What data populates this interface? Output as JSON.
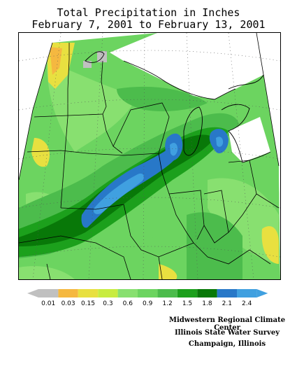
{
  "title": {
    "line1": "Total Precipitation in Inches",
    "line2": "February 7, 2001 to February 13, 2001"
  },
  "legend": {
    "colors": [
      "#c0c0c0",
      "#f5b840",
      "#e8e040",
      "#c8ec40",
      "#88e070",
      "#6cd460",
      "#4cbc4c",
      "#1ca01c",
      "#087808",
      "#2878c8",
      "#40a0e0"
    ],
    "labels": [
      "0.01",
      "0.03",
      "0.15",
      "0.3",
      "0.6",
      "0.9",
      "1.2",
      "1.5",
      "1.8",
      "2.1",
      "2.4"
    ]
  },
  "credits": {
    "line1": "Midwestern Regional Climate Center",
    "line2": "Illinois State Water Survey",
    "line3": "Champaign, Illinois"
  }
}
